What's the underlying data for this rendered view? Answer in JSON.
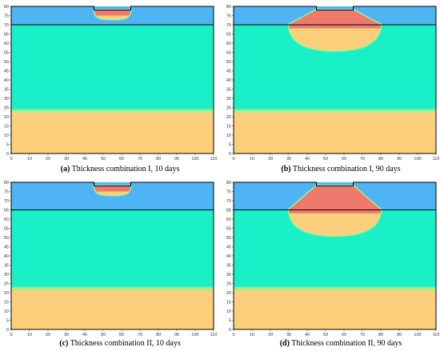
{
  "colors": {
    "layer_top": "#4fb4f4",
    "layer_middle": "#19f0c8",
    "layer_bottom": "#fccf7c",
    "transition": "#9cf28c",
    "zone_red": "#ee7a6e",
    "zone_orange": "#fccf7c",
    "outline": "#000000"
  },
  "panels": [
    {
      "id": "a",
      "label": "(a)",
      "caption": "Thickness combination I, 10 days",
      "interface_y": 70,
      "lower_interface_y": 23,
      "zone": {
        "x_left_top": 45,
        "x_right_top": 65,
        "x_left_bottom": 46,
        "x_right_bottom": 64,
        "depth_y": 73,
        "red_fraction": 0.6
      }
    },
    {
      "id": "b",
      "label": "(b)",
      "caption": "Thickness combination I, 90 days",
      "interface_y": 70,
      "lower_interface_y": 23,
      "zone": {
        "x_left_top": 45,
        "x_right_top": 65,
        "x_left_bottom": 30,
        "x_right_bottom": 80,
        "depth_y": 56,
        "red_fraction": 0.45
      }
    },
    {
      "id": "c",
      "label": "(c)",
      "caption": "Thickness combination II, 10 days",
      "interface_y": 65,
      "lower_interface_y": 22,
      "zone": {
        "x_left_top": 45,
        "x_right_top": 65,
        "x_left_bottom": 46,
        "x_right_bottom": 64,
        "depth_y": 73,
        "red_fraction": 0.6
      }
    },
    {
      "id": "d",
      "label": "(d)",
      "caption": "Thickness combination II, 90 days",
      "interface_y": 65,
      "lower_interface_y": 22,
      "zone": {
        "x_left_top": 45,
        "x_right_top": 65,
        "x_left_bottom": 30,
        "x_right_bottom": 80,
        "depth_y": 51,
        "red_fraction": 0.55
      }
    }
  ],
  "axes": {
    "x_min": 0,
    "x_max": 110,
    "y_min": 0,
    "y_max": 80,
    "x_ticks": [
      "0",
      "10",
      "20",
      "30",
      "40",
      "50",
      "60",
      "70",
      "80",
      "90",
      "100",
      "110"
    ],
    "y_ticks": [
      "0",
      "5",
      "10",
      "15",
      "20",
      "25",
      "30",
      "35",
      "40",
      "45",
      "50",
      "55",
      "60",
      "65",
      "70",
      "75",
      "80"
    ],
    "top_notch_x": [
      45,
      65
    ],
    "top_notch_y": 78
  }
}
